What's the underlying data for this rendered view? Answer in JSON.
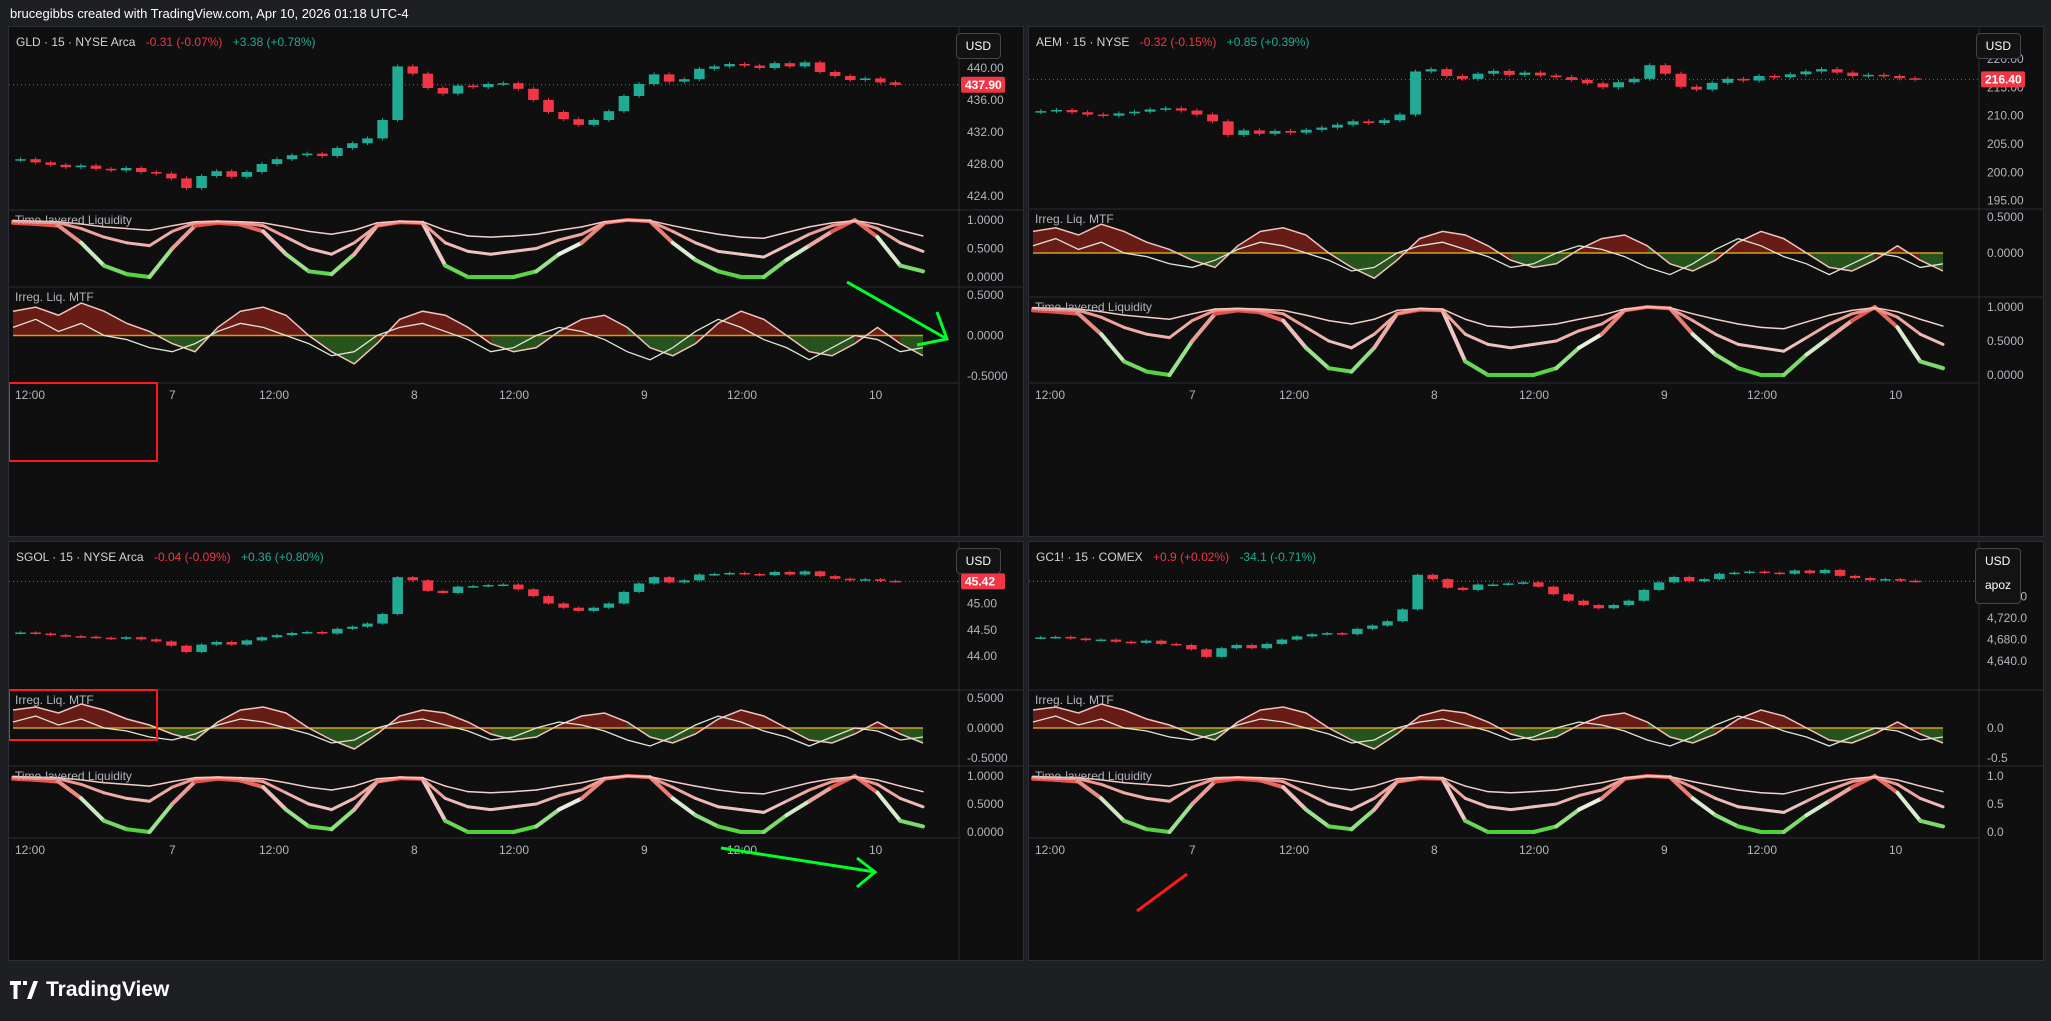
{
  "header": {
    "text": "brucegibbs created with TradingView.com, Apr 10, 2026 01:18 UTC-4"
  },
  "footer": {
    "brand": "TradingView"
  },
  "colors": {
    "up": "#22ab94",
    "down": "#f23645",
    "bg": "#0f0f0f",
    "liq_red": "#e0392e",
    "liq_green": "#4cd137",
    "annotation_green": "#00ff28",
    "annotation_red": "#ff1a1a"
  },
  "panels": [
    {
      "id": "gld",
      "symbol": "GLD · 15 · NYSE Arca",
      "change1": "-0.31 (-0.07%)",
      "change2": "+3.38 (+0.78%)",
      "currency": "USD",
      "currency_sub": "",
      "last_price_label": "437.90",
      "price_ticks": [
        "440.00",
        "436.00",
        "432.00",
        "428.00",
        "424.00"
      ],
      "indicator_top": {
        "label": "Time-layered Liquidity",
        "ticks": [
          "1.0000",
          "0.5000",
          "0.0000"
        ]
      },
      "indicator_bottom": {
        "label": "Irreg. Liq. MTF",
        "ticks": [
          "0.5000",
          "0.0000",
          "-0.5000"
        ]
      },
      "time_ticks": [
        "12:00",
        "7",
        "12:00",
        "8",
        "12:00",
        "9",
        "12:00",
        "10"
      ]
    },
    {
      "id": "aem",
      "symbol": "AEM · 15 · NYSE",
      "change1": "-0.32 (-0.15%)",
      "change2": "+0.85 (+0.39%)",
      "currency": "USD",
      "currency_sub": "",
      "last_price_label": "216.40",
      "price_ticks": [
        "220.00",
        "215.00",
        "210.00",
        "205.00",
        "200.00",
        "195.00"
      ],
      "indicator_top": {
        "label": "Irreg. Liq. MTF",
        "ticks": [
          "0.5000",
          "0.0000"
        ]
      },
      "indicator_bottom": {
        "label": "Time-layered Liquidity",
        "ticks": [
          "1.0000",
          "0.5000",
          "0.0000"
        ]
      },
      "time_ticks": [
        "12:00",
        "7",
        "12:00",
        "8",
        "12:00",
        "9",
        "12:00",
        "10"
      ]
    },
    {
      "id": "sgol",
      "symbol": "SGOL · 15 · NYSE Arca",
      "change1": "-0.04 (-0.09%)",
      "change2": "+0.36 (+0.80%)",
      "currency": "USD",
      "currency_sub": "",
      "last_price_label": "45.42",
      "price_ticks": [
        "45.00",
        "44.50",
        "44.00"
      ],
      "indicator_top": {
        "label": "Irreg. Liq. MTF",
        "ticks": [
          "0.5000",
          "0.0000",
          "-0.5000"
        ]
      },
      "indicator_bottom": {
        "label": "Time-layered Liquidity",
        "ticks": [
          "1.0000",
          "0.5000",
          "0.0000"
        ]
      },
      "time_ticks": [
        "12:00",
        "7",
        "12:00",
        "8",
        "12:00",
        "9",
        "12:00",
        "10"
      ]
    },
    {
      "id": "gc1",
      "symbol": "GC1! · 15 · COMEX",
      "change1": "+0.9 (+0.02%)",
      "change2": "-34.1 (-0.71%)",
      "currency": "USD",
      "currency_sub": "apoz",
      "last_price_label": "",
      "price_ticks": [
        "4,760.0",
        "4,720.0",
        "4,680.0",
        "4,640.0"
      ],
      "indicator_top": {
        "label": "Irreg. Liq. MTF",
        "ticks": [
          "0.0",
          "-0.5"
        ]
      },
      "indicator_bottom": {
        "label": "Time-layered Liquidity",
        "ticks": [
          "1.0",
          "0.5",
          "0.0"
        ]
      },
      "time_ticks": [
        "12:00",
        "7",
        "12:00",
        "8",
        "12:00",
        "9",
        "12:00",
        "10"
      ]
    }
  ],
  "chart_data": [
    {
      "type": "candlestick",
      "title": "GLD · 15 · NYSE Arca",
      "ylim": [
        422,
        442
      ],
      "close": [
        428.6,
        428.2,
        427.9,
        427.6,
        427.8,
        427.4,
        427.2,
        427.5,
        427.0,
        426.8,
        426.2,
        425.0,
        426.5,
        427.1,
        426.4,
        427.0,
        428.0,
        428.6,
        429.1,
        429.3,
        429.0,
        430.0,
        430.6,
        431.2,
        433.5,
        440.2,
        439.3,
        437.5,
        436.8,
        437.8,
        437.6,
        438.0,
        438.1,
        437.4,
        436.0,
        434.5,
        433.6,
        432.9,
        433.5,
        434.6,
        436.5,
        438.0,
        439.2,
        438.3,
        438.6,
        439.9,
        440.2,
        440.5,
        440.3,
        440.0,
        440.6,
        440.2,
        440.7,
        439.5,
        439.0,
        438.5,
        438.7,
        438.2,
        437.9
      ],
      "last": 437.9
    },
    {
      "type": "candlestick",
      "title": "AEM · 15 · NYSE",
      "ylim": [
        193,
        223
      ],
      "close": [
        210.8,
        211.0,
        210.6,
        210.2,
        210.0,
        210.4,
        210.7,
        211.1,
        211.3,
        210.9,
        210.2,
        209.0,
        206.6,
        207.4,
        206.8,
        207.3,
        207.0,
        207.5,
        207.9,
        208.4,
        209.0,
        208.7,
        209.2,
        210.2,
        217.8,
        218.2,
        217.0,
        216.5,
        217.4,
        217.9,
        217.2,
        217.6,
        217.1,
        216.8,
        216.3,
        215.7,
        215.0,
        215.9,
        216.5,
        218.9,
        217.4,
        215.1,
        214.6,
        215.8,
        216.5,
        216.2,
        217.0,
        216.8,
        217.3,
        217.8,
        218.2,
        217.6,
        217.0,
        217.2,
        217.0,
        216.6,
        216.4
      ],
      "last": 216.4
    },
    {
      "type": "candlestick",
      "title": "SGOL · 15 · NYSE Arca",
      "ylim": [
        43.7,
        45.75
      ],
      "close": [
        44.45,
        44.43,
        44.4,
        44.38,
        44.37,
        44.35,
        44.33,
        44.36,
        44.32,
        44.28,
        44.2,
        44.08,
        44.22,
        44.27,
        44.22,
        44.3,
        44.36,
        44.4,
        44.44,
        44.46,
        44.43,
        44.52,
        44.56,
        44.62,
        44.8,
        45.5,
        45.44,
        45.24,
        45.2,
        45.32,
        45.33,
        45.35,
        45.36,
        45.27,
        45.14,
        45.0,
        44.92,
        44.86,
        44.92,
        45.0,
        45.22,
        45.38,
        45.5,
        45.4,
        45.44,
        45.55,
        45.56,
        45.58,
        45.56,
        45.54,
        45.6,
        45.55,
        45.61,
        45.52,
        45.47,
        45.44,
        45.46,
        45.43,
        45.42
      ],
      "last": 45.42
    },
    {
      "type": "candlestick",
      "title": "GC1! · 15 · COMEX",
      "ylim": [
        4620,
        4820
      ],
      "close": [
        4684,
        4685,
        4682,
        4679,
        4680,
        4676,
        4674,
        4678,
        4672,
        4670,
        4662,
        4648,
        4664,
        4670,
        4664,
        4672,
        4680,
        4686,
        4690,
        4692,
        4690,
        4700,
        4706,
        4714,
        4736,
        4800,
        4792,
        4776,
        4772,
        4782,
        4782,
        4784,
        4786,
        4778,
        4764,
        4752,
        4744,
        4738,
        4744,
        4752,
        4772,
        4786,
        4796,
        4788,
        4792,
        4802,
        4804,
        4806,
        4804,
        4802,
        4808,
        4803,
        4809,
        4798,
        4794,
        4790,
        4792,
        4789,
        4788
      ],
      "last": 4788
    },
    {
      "type": "line",
      "title": "Time-layered Liquidity",
      "ylim": [
        0,
        1
      ],
      "series": [
        {
          "values": [
            0.95,
            0.93,
            0.9,
            0.6,
            0.2,
            0.05,
            0.0,
            0.5,
            0.9,
            0.95,
            0.92,
            0.8,
            0.4,
            0.1,
            0.05,
            0.4,
            0.9,
            0.96,
            0.95,
            0.2,
            0.0,
            0.0,
            0.0,
            0.1,
            0.4,
            0.6,
            0.95,
            1.0,
            0.98,
            0.6,
            0.3,
            0.1,
            0.0,
            0.0,
            0.3,
            0.55,
            0.8,
            1.0,
            0.7,
            0.2,
            0.1
          ]
        },
        {
          "values": [
            0.98,
            0.96,
            0.95,
            0.85,
            0.7,
            0.6,
            0.55,
            0.8,
            0.95,
            0.97,
            0.95,
            0.9,
            0.7,
            0.5,
            0.4,
            0.6,
            0.9,
            0.97,
            0.95,
            0.6,
            0.45,
            0.4,
            0.45,
            0.5,
            0.65,
            0.75,
            0.95,
            1.0,
            0.98,
            0.8,
            0.6,
            0.45,
            0.4,
            0.35,
            0.55,
            0.75,
            0.9,
            0.98,
            0.85,
            0.6,
            0.45
          ]
        },
        {
          "values": [
            0.99,
            0.98,
            0.97,
            0.93,
            0.88,
            0.85,
            0.82,
            0.9,
            0.97,
            0.98,
            0.97,
            0.95,
            0.88,
            0.8,
            0.75,
            0.82,
            0.95,
            0.98,
            0.97,
            0.82,
            0.72,
            0.7,
            0.72,
            0.75,
            0.82,
            0.88,
            0.97,
            1.0,
            0.99,
            0.9,
            0.82,
            0.75,
            0.7,
            0.68,
            0.78,
            0.88,
            0.95,
            0.99,
            0.93,
            0.82,
            0.72
          ]
        }
      ]
    },
    {
      "type": "area",
      "title": "Irreg. Liq. MTF",
      "ylim": [
        -0.5,
        0.5
      ],
      "series": [
        {
          "values": [
            0.3,
            0.35,
            0.25,
            0.4,
            0.3,
            0.15,
            0.05,
            -0.1,
            -0.2,
            0.1,
            0.3,
            0.35,
            0.25,
            0.0,
            -0.2,
            -0.35,
            -0.1,
            0.2,
            0.3,
            0.25,
            0.1,
            -0.1,
            -0.2,
            -0.15,
            0.05,
            0.2,
            0.25,
            0.1,
            -0.15,
            -0.25,
            -0.1,
            0.15,
            0.3,
            0.2,
            0.0,
            -0.2,
            -0.25,
            -0.1,
            0.1,
            -0.1,
            -0.25
          ]
        },
        {
          "values": [
            0.1,
            0.2,
            0.05,
            0.15,
            0.0,
            -0.05,
            -0.15,
            -0.2,
            -0.1,
            0.05,
            0.15,
            0.1,
            0.0,
            -0.1,
            -0.25,
            -0.2,
            0.0,
            0.1,
            0.15,
            0.05,
            -0.05,
            -0.2,
            -0.15,
            0.0,
            0.1,
            0.05,
            -0.05,
            -0.2,
            -0.3,
            -0.15,
            0.05,
            0.2,
            0.1,
            -0.05,
            -0.15,
            -0.3,
            -0.15,
            0.0,
            -0.05,
            -0.2,
            -0.15
          ]
        }
      ]
    }
  ]
}
